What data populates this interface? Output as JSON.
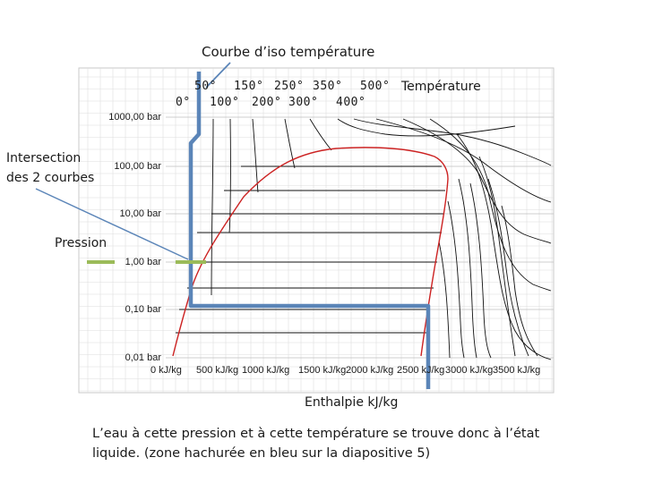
{
  "diagram": {
    "title": "Courbe d’iso température",
    "temperature_label": "Température",
    "temperature_ticks_top": [
      "50°",
      "150°",
      "250°",
      "350°",
      "500°"
    ],
    "temperature_ticks_bottom": [
      "0°",
      "100°",
      "200°",
      "300°",
      "400°"
    ],
    "intersection_label_line1": "Intersection",
    "intersection_label_line2": "des 2 courbes",
    "pressure_label": "Pression",
    "enthalpy_label": "Enthalpie kJ/kg",
    "y_ticks": [
      "1000,00 bar",
      "100,00 bar",
      "10,00 bar",
      "1,00 bar",
      "0,10 bar",
      "0,01 bar"
    ],
    "x_ticks": [
      "0 kJ/kg",
      "500 kJ/kg",
      "1000 kJ/kg",
      "1500 kJ/kg",
      "2000 kJ/kg",
      "2500 kJ/kg",
      "3000 kJ/kg",
      "3500 kJ/kg"
    ],
    "colors": {
      "dome": "#cc2222",
      "highlight": "#5b85b8",
      "pressure_marker": "#9bbb59",
      "isotherm": "#000000"
    }
  },
  "caption": {
    "line1": "L’eau à cette pression et à cette température se trouve donc à l’état",
    "line2": "liquide. (zone hachurée en bleu sur la diapositive 5)"
  }
}
